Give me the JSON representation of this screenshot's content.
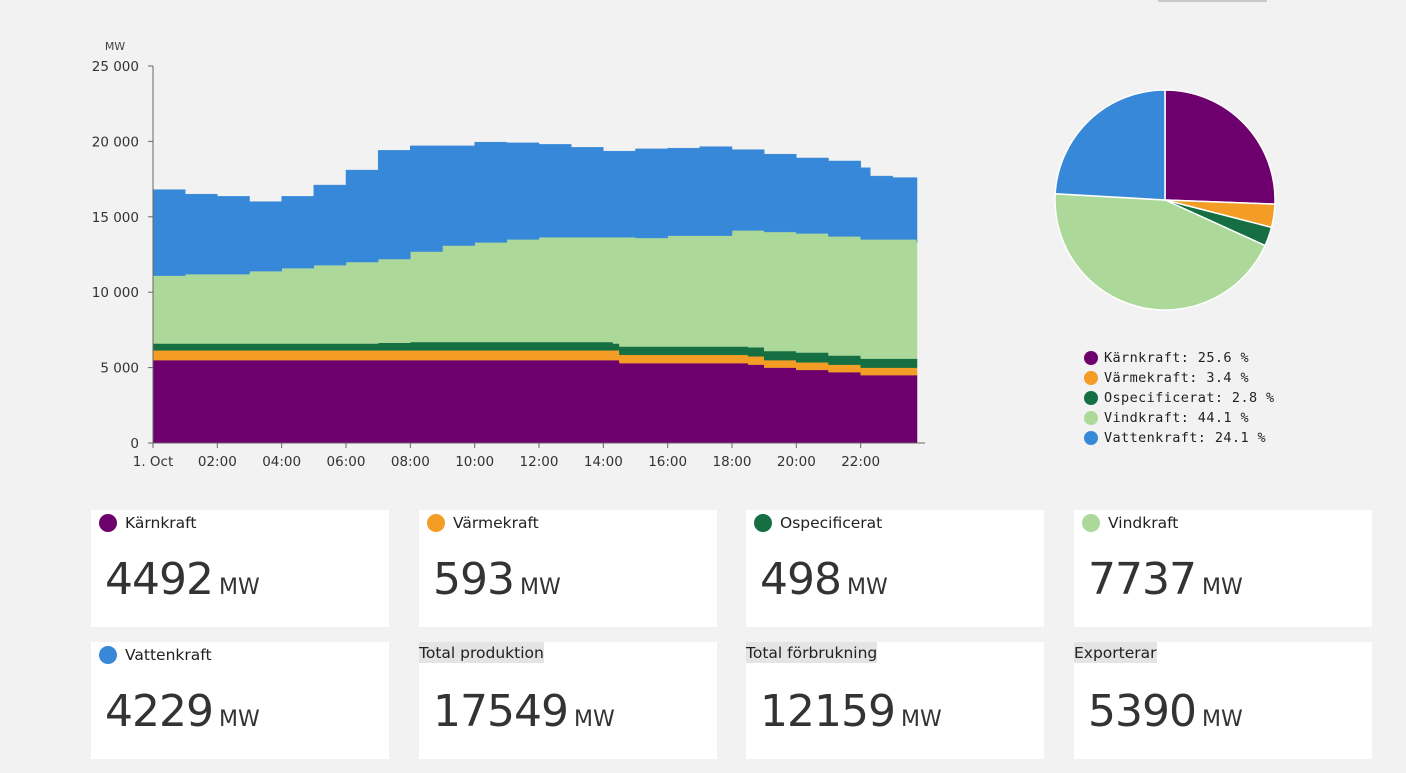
{
  "chart_data": [
    {
      "type": "area",
      "stacked": true,
      "ylabel": "MW",
      "ylim": [
        0,
        25000
      ],
      "yticks": [
        0,
        5000,
        10000,
        15000,
        20000,
        25000
      ],
      "ytick_labels": [
        "0",
        "5 000",
        "10 000",
        "15 000",
        "20 000",
        "25 000"
      ],
      "xlim": [
        0,
        24
      ],
      "xticks": [
        0,
        2,
        4,
        6,
        8,
        10,
        12,
        14,
        16,
        18,
        20,
        22
      ],
      "xtick_labels": [
        "1. Oct",
        "02:00",
        "04:00",
        "06:00",
        "08:00",
        "10:00",
        "12:00",
        "14:00",
        "16:00",
        "18:00",
        "20:00",
        "22:00"
      ],
      "x_end": 23.75,
      "series": [
        {
          "name": "Kärnkraft",
          "color": "#6d006d",
          "total_points": [
            [
              0,
              5500
            ],
            [
              14.3,
              5500
            ],
            [
              14.5,
              5300
            ],
            [
              18.5,
              5200
            ],
            [
              19,
              5000
            ],
            [
              20,
              4850
            ],
            [
              21,
              4700
            ],
            [
              22,
              4500
            ],
            [
              23.75,
              4500
            ]
          ]
        },
        {
          "name": "Värmekraft",
          "color": "#f39c26",
          "total_points": [
            [
              0,
              6150
            ],
            [
              14.3,
              6150
            ],
            [
              14.5,
              5850
            ],
            [
              18.5,
              5750
            ],
            [
              19,
              5500
            ],
            [
              20,
              5350
            ],
            [
              21,
              5200
            ],
            [
              22,
              5000
            ],
            [
              23.75,
              5000
            ]
          ]
        },
        {
          "name": "Ospecificerat",
          "color": "#156f43",
          "total_points": [
            [
              0,
              6600
            ],
            [
              7,
              6650
            ],
            [
              8,
              6700
            ],
            [
              14.3,
              6600
            ],
            [
              14.5,
              6400
            ],
            [
              18.5,
              6350
            ],
            [
              19,
              6100
            ],
            [
              20,
              6000
            ],
            [
              21,
              5800
            ],
            [
              22,
              5600
            ],
            [
              23.75,
              5600
            ]
          ]
        },
        {
          "name": "Vindkraft",
          "color": "#acd99a",
          "total_points": [
            [
              0,
              11100
            ],
            [
              1,
              11200
            ],
            [
              3,
              11400
            ],
            [
              4,
              11600
            ],
            [
              5,
              11800
            ],
            [
              6,
              12000
            ],
            [
              7,
              12200
            ],
            [
              8,
              12700
            ],
            [
              9,
              13100
            ],
            [
              10,
              13300
            ],
            [
              11,
              13500
            ],
            [
              12,
              13650
            ],
            [
              14,
              13650
            ],
            [
              15,
              13600
            ],
            [
              16,
              13750
            ],
            [
              18,
              14100
            ],
            [
              19,
              14000
            ],
            [
              20,
              13900
            ],
            [
              21,
              13700
            ],
            [
              22,
              13500
            ],
            [
              23.75,
              13300
            ]
          ]
        },
        {
          "name": "Vattenkraft",
          "color": "#3788d8",
          "total_points": [
            [
              0,
              16800
            ],
            [
              1,
              16500
            ],
            [
              2,
              16350
            ],
            [
              3,
              16000
            ],
            [
              4,
              16350
            ],
            [
              5,
              17100
            ],
            [
              6,
              18100
            ],
            [
              7,
              19400
            ],
            [
              8,
              19700
            ],
            [
              9,
              19700
            ],
            [
              10,
              19950
            ],
            [
              11,
              19900
            ],
            [
              12,
              19800
            ],
            [
              13,
              19600
            ],
            [
              14,
              19350
            ],
            [
              15,
              19500
            ],
            [
              16,
              19550
            ],
            [
              17,
              19650
            ],
            [
              18,
              19450
            ],
            [
              19,
              19150
            ],
            [
              20,
              18900
            ],
            [
              21,
              18700
            ],
            [
              22,
              18250
            ],
            [
              22.3,
              17700
            ],
            [
              23,
              17600
            ],
            [
              23.75,
              17500
            ]
          ]
        }
      ]
    },
    {
      "type": "pie",
      "slices": [
        {
          "label": "Kärnkraft",
          "value": 25.6,
          "color": "#6d006d"
        },
        {
          "label": "Värmekraft",
          "value": 3.4,
          "color": "#f39c26"
        },
        {
          "label": "Ospecificerat",
          "value": 2.8,
          "color": "#156f43"
        },
        {
          "label": "Vindkraft",
          "value": 44.1,
          "color": "#acd99a"
        },
        {
          "label": "Vattenkraft",
          "value": 24.1,
          "color": "#3788d8"
        }
      ]
    }
  ],
  "legend": [
    {
      "label": "Kärnkraft: 25.6 %",
      "color": "#6d006d"
    },
    {
      "label": "Värmekraft: 3.4 %",
      "color": "#f39c26"
    },
    {
      "label": "Ospecificerat: 2.8 %",
      "color": "#156f43"
    },
    {
      "label": "Vindkraft: 44.1 %",
      "color": "#acd99a"
    },
    {
      "label": "Vattenkraft: 24.1 %",
      "color": "#3788d8"
    }
  ],
  "cards": [
    {
      "label": "Kärnkraft",
      "value": "4492",
      "unit": "MW",
      "color": "#6d006d"
    },
    {
      "label": "Värmekraft",
      "value": "593",
      "unit": "MW",
      "color": "#f39c26"
    },
    {
      "label": "Ospecificerat",
      "value": "498",
      "unit": "MW",
      "color": "#156f43"
    },
    {
      "label": "Vindkraft",
      "value": "7737",
      "unit": "MW",
      "color": "#acd99a"
    },
    {
      "label": "Vattenkraft",
      "value": "4229",
      "unit": "MW",
      "color": "#3788d8"
    },
    {
      "label": "Total produktion",
      "value": "17549",
      "unit": "MW"
    },
    {
      "label": "Total förbrukning",
      "value": "12159",
      "unit": "MW"
    },
    {
      "label": "Exporterar",
      "value": "5390",
      "unit": "MW"
    }
  ]
}
